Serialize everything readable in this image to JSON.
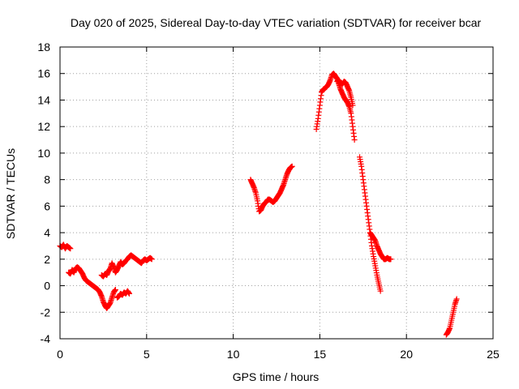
{
  "chart_data": {
    "type": "scatter",
    "title": "Day 020 of 2025, Sidereal Day-to-day VTEC variation (SDTVAR) for receiver bcar",
    "xlabel": "GPS time / hours",
    "ylabel": "SDTVAR / TECUs",
    "xlim": [
      0,
      25
    ],
    "ylim": [
      -4,
      18
    ],
    "xticks": [
      0,
      5,
      10,
      15,
      20,
      25
    ],
    "yticks": [
      -4,
      -2,
      0,
      2,
      4,
      6,
      8,
      10,
      12,
      14,
      16,
      18
    ],
    "xtick_labels": [
      "0",
      "5",
      "10",
      "15",
      "20",
      "25"
    ],
    "ytick_labels": [
      "-4",
      "-2",
      "0",
      "2",
      "4",
      "6",
      "8",
      "10",
      "12",
      "14",
      "16",
      "18"
    ],
    "grid": true,
    "marker": "plus",
    "color": "#ff0000",
    "segments": [
      {
        "x": [
          0.0,
          0.1,
          0.2,
          0.3,
          0.4,
          0.5,
          0.6
        ],
        "y": [
          3.0,
          2.9,
          3.1,
          2.8,
          3.0,
          2.9,
          2.8
        ]
      },
      {
        "x": [
          0.5,
          0.6,
          0.7,
          0.8,
          0.9,
          1.0,
          1.1,
          1.2,
          1.3,
          1.4,
          1.5,
          1.6,
          1.7,
          1.8,
          1.9,
          2.0,
          2.1,
          2.2,
          2.3,
          2.4,
          2.5,
          2.6,
          2.7,
          2.8,
          2.9,
          3.0,
          3.1,
          3.2
        ],
        "y": [
          1.0,
          0.9,
          1.2,
          1.0,
          1.3,
          1.4,
          1.3,
          1.1,
          0.9,
          0.6,
          0.4,
          0.3,
          0.2,
          0.1,
          0.0,
          -0.1,
          -0.2,
          -0.3,
          -0.5,
          -0.8,
          -1.2,
          -1.5,
          -1.7,
          -1.5,
          -1.3,
          -0.9,
          -0.5,
          -0.3
        ]
      },
      {
        "x": [
          2.4,
          2.5,
          2.6,
          2.7,
          2.8,
          2.9,
          3.0,
          3.1,
          3.2,
          3.3,
          3.4,
          3.5,
          3.6,
          3.7,
          3.8,
          3.9,
          4.0,
          4.1,
          4.2,
          4.3,
          4.4,
          4.5,
          4.6,
          4.7,
          4.8,
          4.9,
          5.0,
          5.1,
          5.2,
          5.3
        ],
        "y": [
          0.8,
          0.7,
          0.9,
          0.8,
          1.1,
          1.3,
          1.7,
          1.4,
          1.0,
          1.2,
          1.5,
          1.8,
          1.6,
          1.7,
          1.9,
          2.0,
          2.2,
          2.3,
          2.2,
          2.1,
          2.0,
          1.9,
          1.8,
          1.7,
          1.9,
          2.0,
          1.9,
          2.0,
          2.1,
          2.0
        ]
      },
      {
        "x": [
          3.3,
          3.4,
          3.5,
          3.6,
          3.7,
          3.8,
          3.9,
          4.0
        ],
        "y": [
          -0.9,
          -0.8,
          -0.6,
          -0.7,
          -0.5,
          -0.6,
          -0.4,
          -0.6
        ]
      },
      {
        "x": [
          11.0,
          11.1,
          11.2,
          11.3,
          11.4,
          11.5,
          11.6,
          11.7,
          11.8,
          11.9,
          12.0,
          12.1,
          12.2,
          12.3,
          12.4,
          12.5,
          12.6,
          12.7,
          12.8,
          12.9,
          13.0,
          13.1,
          13.2,
          13.3,
          13.4
        ],
        "y": [
          8.0,
          7.7,
          7.4,
          7.0,
          6.4,
          5.6,
          5.7,
          6.0,
          6.2,
          6.3,
          6.5,
          6.5,
          6.4,
          6.3,
          6.4,
          6.6,
          6.8,
          7.0,
          7.3,
          7.6,
          8.0,
          8.4,
          8.7,
          8.9,
          9.0
        ]
      },
      {
        "x": [
          14.8,
          14.9,
          15.0,
          15.1,
          15.2,
          15.3,
          15.4,
          15.5,
          15.6,
          15.7,
          15.8,
          15.9,
          16.0,
          16.1,
          16.2,
          16.3,
          16.4,
          16.5,
          16.6,
          16.7,
          16.8,
          16.9,
          17.0
        ],
        "y": [
          11.8,
          12.6,
          13.6,
          14.6,
          14.8,
          14.9,
          15.0,
          15.2,
          15.5,
          15.9,
          16.0,
          15.8,
          15.6,
          15.2,
          14.8,
          14.5,
          14.2,
          14.0,
          13.8,
          13.5,
          13.0,
          12.0,
          11.0
        ]
      },
      {
        "x": [
          16.0,
          16.1,
          16.2,
          16.3,
          16.4,
          16.5,
          16.6,
          16.7,
          16.8,
          16.9
        ],
        "y": [
          15.4,
          15.5,
          15.3,
          15.2,
          15.4,
          15.3,
          15.0,
          14.7,
          14.2,
          13.6
        ]
      },
      {
        "x": [
          17.3,
          17.4,
          17.5,
          17.6,
          17.7,
          17.8,
          17.9,
          18.0,
          18.1,
          18.2,
          18.3,
          18.4,
          18.5
        ],
        "y": [
          9.7,
          9.0,
          8.0,
          7.0,
          6.0,
          5.0,
          4.0,
          3.0,
          2.2,
          1.5,
          0.8,
          0.2,
          -0.4
        ]
      },
      {
        "x": [
          17.9,
          18.0,
          18.1,
          18.2,
          18.3,
          18.4,
          18.5,
          18.6,
          18.7,
          18.8,
          18.9,
          19.0,
          19.1
        ],
        "y": [
          4.0,
          3.8,
          3.6,
          3.4,
          3.0,
          2.7,
          2.4,
          2.2,
          2.0,
          2.0,
          2.1,
          2.0,
          2.0
        ]
      },
      {
        "x": [
          22.3,
          22.4,
          22.5,
          22.6,
          22.7,
          22.8,
          22.9
        ],
        "y": [
          -3.7,
          -3.5,
          -3.2,
          -2.6,
          -2.0,
          -1.4,
          -1.0
        ]
      }
    ]
  }
}
